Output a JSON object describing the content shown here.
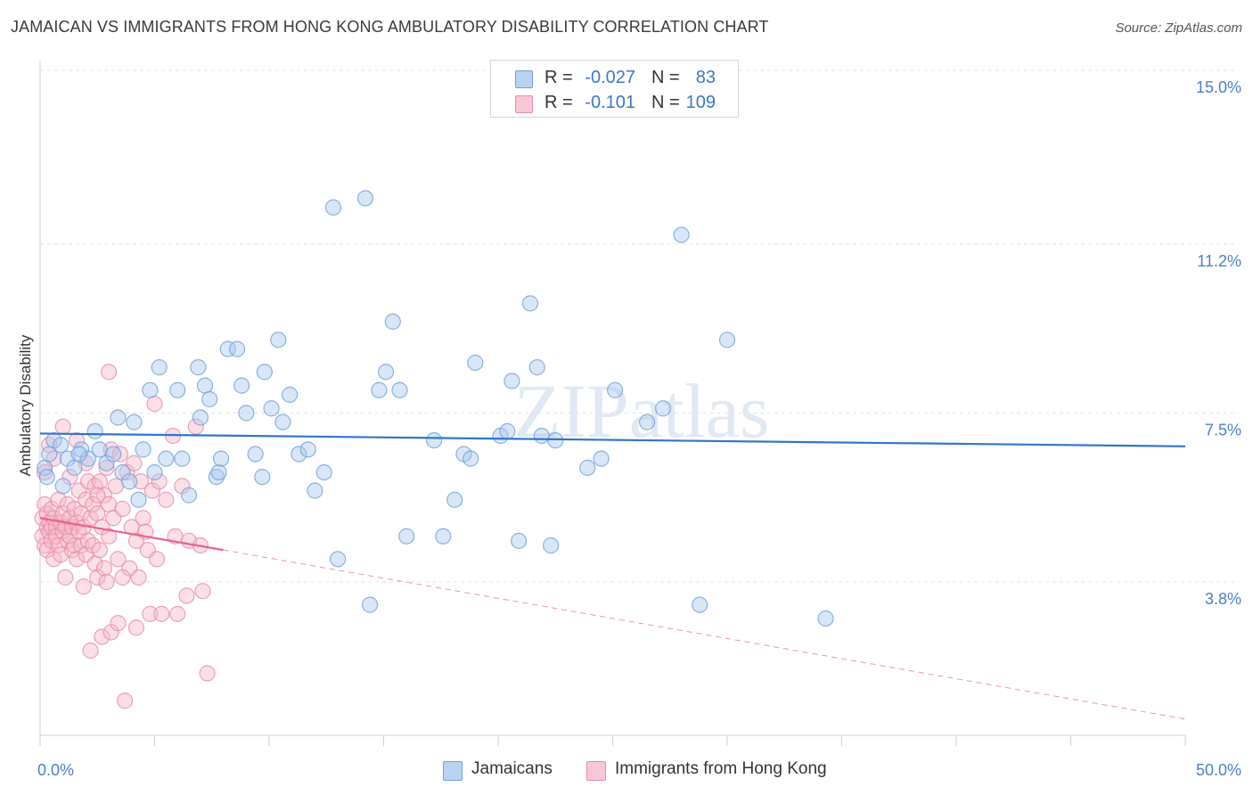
{
  "title": "JAMAICAN VS IMMIGRANTS FROM HONG KONG AMBULATORY DISABILITY CORRELATION CHART",
  "source": "Source: ZipAtlas.com",
  "watermark": "ZIPatlas",
  "legend_top": {
    "rows": [
      {
        "r_label": "R =",
        "r_value": "-0.027",
        "n_label": "N =",
        "n_value": "83"
      },
      {
        "r_label": "R =",
        "r_value": "-0.101",
        "n_label": "N =",
        "n_value": "109"
      }
    ]
  },
  "legend_bottom": {
    "items": [
      "Jamaicans",
      "Immigrants from Hong Kong"
    ]
  },
  "colors": {
    "blue_fill": "#a9c8ef",
    "blue_stroke": "#6f9fd8",
    "blue_line": "#3175c9",
    "pink_fill": "#f4b8c9",
    "pink_stroke": "#ea8aa6",
    "pink_line": "#e8628b",
    "tick_label": "#4a7fc9",
    "grid": "#e2e2e2"
  },
  "chart_data": {
    "type": "scatter",
    "title": "JAMAICAN VS IMMIGRANTS FROM HONG KONG AMBULATORY DISABILITY CORRELATION CHART",
    "xlabel": "",
    "ylabel": "Ambulatory Disability",
    "xlim": [
      0,
      50
    ],
    "ylim": [
      0,
      15.5
    ],
    "x_tick_labels": [
      "0.0%",
      "50.0%"
    ],
    "y_ticks": [
      3.8,
      7.5,
      11.2,
      15.0
    ],
    "y_tick_labels": [
      "3.8%",
      "7.5%",
      "11.2%",
      "15.0%"
    ],
    "grid": true,
    "legend_position": "top-center",
    "series": [
      {
        "name": "Jamaicans",
        "color": "#a9c8ef",
        "trend": {
          "x": [
            0,
            50
          ],
          "y": [
            7.05,
            6.77
          ]
        },
        "points": [
          [
            0.2,
            6.3
          ],
          [
            0.4,
            6.6
          ],
          [
            0.6,
            6.9
          ],
          [
            0.9,
            6.8
          ],
          [
            1.2,
            6.5
          ],
          [
            1.5,
            6.3
          ],
          [
            1.8,
            6.7
          ],
          [
            2.1,
            6.5
          ],
          [
            2.4,
            7.1
          ],
          [
            2.6,
            6.7
          ],
          [
            2.9,
            6.4
          ],
          [
            3.2,
            6.6
          ],
          [
            3.4,
            7.4
          ],
          [
            3.6,
            6.2
          ],
          [
            3.9,
            6.0
          ],
          [
            4.1,
            7.3
          ],
          [
            4.3,
            5.6
          ],
          [
            4.5,
            6.7
          ],
          [
            4.8,
            8.0
          ],
          [
            5.0,
            6.2
          ],
          [
            5.2,
            8.5
          ],
          [
            5.5,
            6.5
          ],
          [
            6.0,
            8.0
          ],
          [
            6.2,
            6.5
          ],
          [
            6.5,
            5.7
          ],
          [
            6.9,
            8.5
          ],
          [
            7.0,
            7.4
          ],
          [
            7.2,
            8.1
          ],
          [
            7.4,
            7.8
          ],
          [
            7.7,
            6.1
          ],
          [
            7.8,
            6.2
          ],
          [
            7.9,
            6.5
          ],
          [
            8.2,
            8.9
          ],
          [
            8.6,
            8.9
          ],
          [
            8.8,
            8.1
          ],
          [
            9.0,
            7.5
          ],
          [
            9.4,
            6.6
          ],
          [
            9.7,
            6.1
          ],
          [
            9.8,
            8.4
          ],
          [
            10.1,
            7.6
          ],
          [
            10.4,
            9.1
          ],
          [
            10.6,
            7.3
          ],
          [
            10.9,
            7.9
          ],
          [
            11.3,
            6.6
          ],
          [
            11.7,
            6.7
          ],
          [
            12.0,
            5.8
          ],
          [
            12.4,
            6.2
          ],
          [
            12.8,
            12.0
          ],
          [
            13.0,
            4.3
          ],
          [
            14.2,
            12.2
          ],
          [
            14.4,
            3.3
          ],
          [
            14.8,
            8.0
          ],
          [
            15.1,
            8.4
          ],
          [
            15.4,
            9.5
          ],
          [
            15.7,
            8.0
          ],
          [
            16.0,
            4.8
          ],
          [
            17.2,
            6.9
          ],
          [
            17.6,
            4.8
          ],
          [
            18.1,
            5.6
          ],
          [
            18.5,
            6.6
          ],
          [
            18.8,
            6.5
          ],
          [
            19.0,
            8.6
          ],
          [
            20.1,
            7.0
          ],
          [
            20.4,
            7.1
          ],
          [
            20.6,
            8.2
          ],
          [
            20.9,
            4.7
          ],
          [
            21.4,
            9.9
          ],
          [
            21.7,
            8.5
          ],
          [
            21.9,
            7.0
          ],
          [
            22.3,
            4.6
          ],
          [
            22.5,
            6.9
          ],
          [
            23.9,
            6.3
          ],
          [
            24.5,
            6.5
          ],
          [
            25.1,
            8.0
          ],
          [
            26.5,
            7.3
          ],
          [
            27.2,
            7.6
          ],
          [
            28.0,
            11.4
          ],
          [
            28.8,
            3.3
          ],
          [
            30.0,
            9.1
          ],
          [
            34.3,
            3.0
          ],
          [
            0.3,
            6.1
          ],
          [
            1.0,
            5.9
          ],
          [
            1.7,
            6.6
          ]
        ]
      },
      {
        "name": "Immigrants from Hong Kong",
        "color": "#f4b8c9",
        "trend": {
          "x": [
            0,
            8
          ],
          "y": [
            5.2,
            4.5
          ]
        },
        "trend_extension": {
          "x": [
            8,
            50
          ],
          "y": [
            4.5,
            0.8
          ]
        },
        "points": [
          [
            0.1,
            5.2
          ],
          [
            0.1,
            4.8
          ],
          [
            0.2,
            5.5
          ],
          [
            0.2,
            4.6
          ],
          [
            0.3,
            5.0
          ],
          [
            0.3,
            5.3
          ],
          [
            0.3,
            4.5
          ],
          [
            0.4,
            5.1
          ],
          [
            0.4,
            4.9
          ],
          [
            0.5,
            5.4
          ],
          [
            0.5,
            4.7
          ],
          [
            0.5,
            5.0
          ],
          [
            0.6,
            5.2
          ],
          [
            0.6,
            4.3
          ],
          [
            0.7,
            5.0
          ],
          [
            0.7,
            4.8
          ],
          [
            0.8,
            5.6
          ],
          [
            0.8,
            4.6
          ],
          [
            0.9,
            5.1
          ],
          [
            0.9,
            4.4
          ],
          [
            1.0,
            5.3
          ],
          [
            1.0,
            4.9
          ],
          [
            1.1,
            5.0
          ],
          [
            1.1,
            3.9
          ],
          [
            1.2,
            5.5
          ],
          [
            1.2,
            4.7
          ],
          [
            1.3,
            5.2
          ],
          [
            1.3,
            4.8
          ],
          [
            1.4,
            5.0
          ],
          [
            1.4,
            4.5
          ],
          [
            1.5,
            5.4
          ],
          [
            1.5,
            4.6
          ],
          [
            1.6,
            5.1
          ],
          [
            1.6,
            4.3
          ],
          [
            1.7,
            5.8
          ],
          [
            1.7,
            4.9
          ],
          [
            1.8,
            5.3
          ],
          [
            1.8,
            4.6
          ],
          [
            1.9,
            5.0
          ],
          [
            1.9,
            3.7
          ],
          [
            2.0,
            5.6
          ],
          [
            2.0,
            4.4
          ],
          [
            2.1,
            6.0
          ],
          [
            2.1,
            4.7
          ],
          [
            2.2,
            5.2
          ],
          [
            2.2,
            2.3
          ],
          [
            2.3,
            5.5
          ],
          [
            2.3,
            4.6
          ],
          [
            2.4,
            5.9
          ],
          [
            2.4,
            4.2
          ],
          [
            2.5,
            5.3
          ],
          [
            2.5,
            3.9
          ],
          [
            2.6,
            6.0
          ],
          [
            2.6,
            4.5
          ],
          [
            2.7,
            5.0
          ],
          [
            2.7,
            2.6
          ],
          [
            2.8,
            5.7
          ],
          [
            2.8,
            4.1
          ],
          [
            2.9,
            6.3
          ],
          [
            2.9,
            3.8
          ],
          [
            3.0,
            5.5
          ],
          [
            3.0,
            4.8
          ],
          [
            3.1,
            6.7
          ],
          [
            3.1,
            2.7
          ],
          [
            3.2,
            5.2
          ],
          [
            3.3,
            5.9
          ],
          [
            3.4,
            4.3
          ],
          [
            3.4,
            2.9
          ],
          [
            3.5,
            6.6
          ],
          [
            3.6,
            5.4
          ],
          [
            3.7,
            1.2
          ],
          [
            3.8,
            6.2
          ],
          [
            3.9,
            4.1
          ],
          [
            4.0,
            5.0
          ],
          [
            4.1,
            6.4
          ],
          [
            4.2,
            4.7
          ],
          [
            4.3,
            3.9
          ],
          [
            4.4,
            6.0
          ],
          [
            4.5,
            5.2
          ],
          [
            4.6,
            4.9
          ],
          [
            4.7,
            4.5
          ],
          [
            4.8,
            3.1
          ],
          [
            4.9,
            5.8
          ],
          [
            5.0,
            7.7
          ],
          [
            5.1,
            4.3
          ],
          [
            5.2,
            6.0
          ],
          [
            5.3,
            3.1
          ],
          [
            5.5,
            5.6
          ],
          [
            5.8,
            7.0
          ],
          [
            5.9,
            4.8
          ],
          [
            6.0,
            3.1
          ],
          [
            6.2,
            5.9
          ],
          [
            6.5,
            4.7
          ],
          [
            6.8,
            7.2
          ],
          [
            7.0,
            4.6
          ],
          [
            7.1,
            3.6
          ],
          [
            7.3,
            1.8
          ],
          [
            0.2,
            6.2
          ],
          [
            0.4,
            6.8
          ],
          [
            0.6,
            6.5
          ],
          [
            1.0,
            7.2
          ],
          [
            1.3,
            6.1
          ],
          [
            1.6,
            6.9
          ],
          [
            2.0,
            6.4
          ],
          [
            2.5,
            5.7
          ],
          [
            3.0,
            8.4
          ],
          [
            3.6,
            3.9
          ],
          [
            4.2,
            2.8
          ],
          [
            6.4,
            3.5
          ]
        ]
      }
    ]
  }
}
